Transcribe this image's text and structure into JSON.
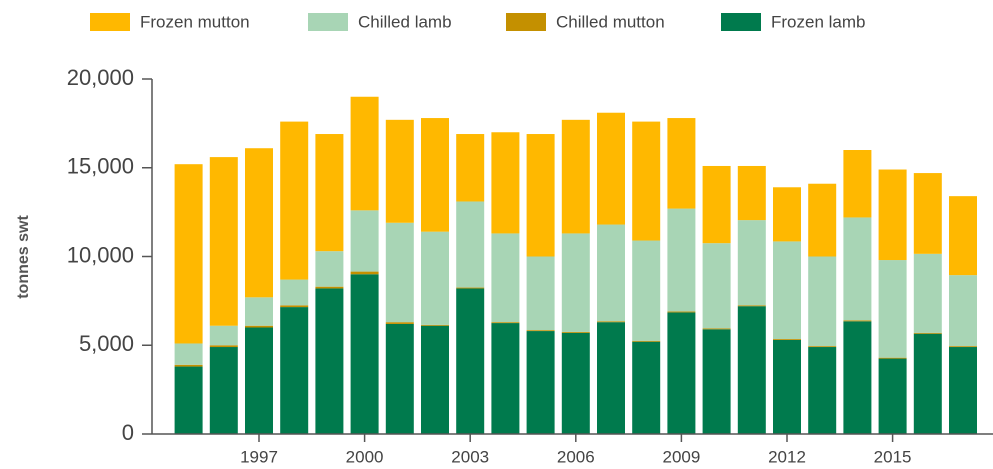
{
  "chart_data": {
    "type": "stacked-bar",
    "y_label": "tonnes swt",
    "categories": [
      null,
      null,
      "1997",
      null,
      null,
      "2000",
      null,
      null,
      "2003",
      null,
      null,
      "2006",
      null,
      null,
      "2009",
      null,
      null,
      "2012",
      null,
      null,
      "2015",
      null,
      null
    ],
    "series": [
      {
        "name": "Frozen mutton",
        "color": "#ffb800",
        "values": [
          10100,
          9500,
          8400,
          8900,
          6600,
          6400,
          5800,
          6400,
          3800,
          5700,
          6900,
          6400,
          6300,
          6700,
          5100,
          4350,
          3050,
          3050,
          4100,
          3800,
          5100,
          4550,
          4450
        ]
      },
      {
        "name": "Chilled lamb",
        "color": "#a8d5b5",
        "values": [
          1200,
          1100,
          1600,
          1450,
          2000,
          3450,
          5600,
          5250,
          4850,
          5000,
          4150,
          5550,
          5450,
          5650,
          5800,
          4800,
          4800,
          5500,
          5050,
          5800,
          5500,
          4450,
          4000
        ]
      },
      {
        "name": "Chilled mutton",
        "color": "#c49000",
        "values": [
          100,
          100,
          100,
          100,
          100,
          150,
          100,
          50,
          50,
          50,
          50,
          50,
          50,
          50,
          50,
          50,
          50,
          50,
          50,
          50,
          50,
          50,
          50
        ]
      },
      {
        "name": "Frozen lamb",
        "color": "#007a4d",
        "values": [
          3800,
          4900,
          6000,
          7150,
          8200,
          9000,
          6200,
          6100,
          8200,
          6250,
          5800,
          5700,
          6300,
          5200,
          6850,
          5900,
          7200,
          5300,
          4900,
          6350,
          4250,
          5650,
          4900
        ]
      }
    ],
    "ylim": [
      0,
      20000
    ],
    "yticks": [
      0,
      {
        "value": 5000,
        "label": "5,000"
      },
      {
        "value": 10000,
        "label": "10,000"
      },
      {
        "value": 15000,
        "label": "15,000"
      },
      {
        "value": 20000,
        "label": "20,000"
      }
    ]
  }
}
